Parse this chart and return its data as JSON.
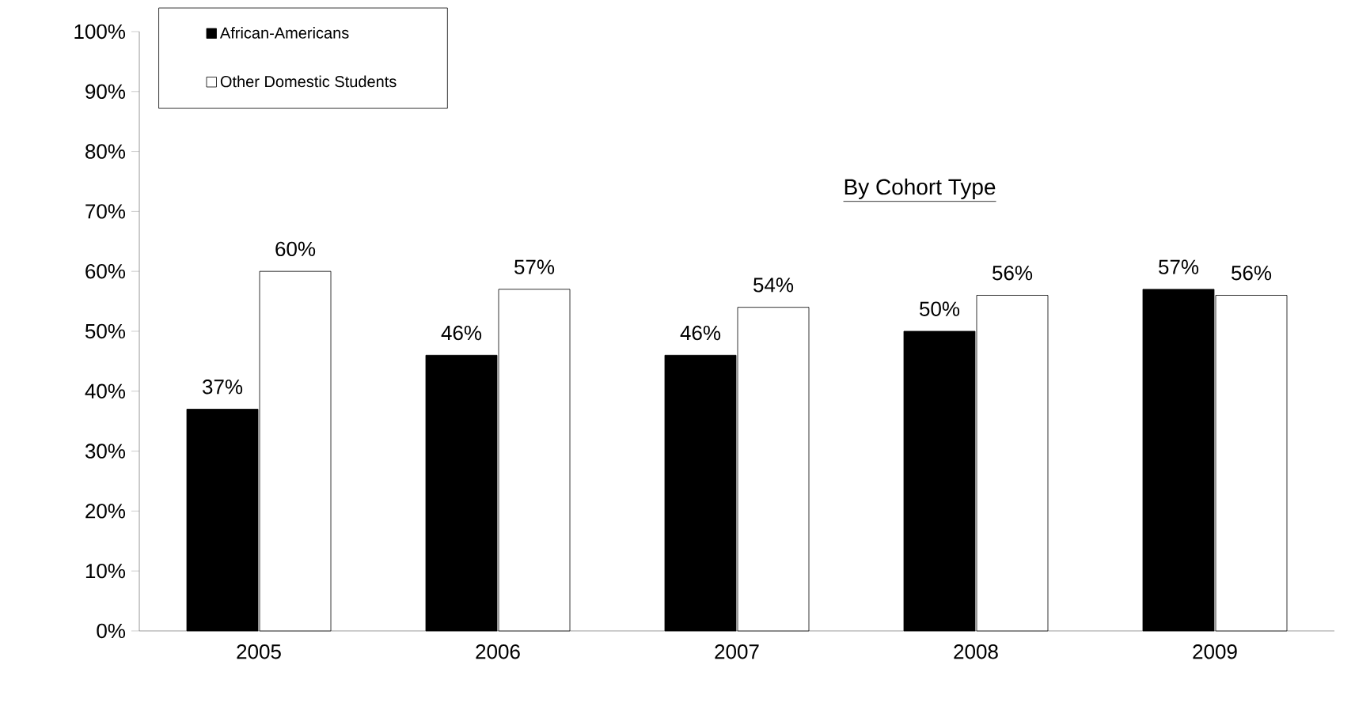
{
  "chart_data": {
    "type": "bar",
    "title": "By Cohort Type",
    "categories": [
      "2005",
      "2006",
      "2007",
      "2008",
      "2009"
    ],
    "series": [
      {
        "name": "African-Americans",
        "color": "#000000",
        "values": [
          37,
          46,
          46,
          50,
          57
        ],
        "value_labels": [
          "37%",
          "46%",
          "46%",
          "50%",
          "57%"
        ]
      },
      {
        "name": "Other Domestic Students",
        "color": "#ffffff",
        "values": [
          60,
          57,
          54,
          56,
          56
        ],
        "value_labels": [
          "60%",
          "57%",
          "54%",
          "56%",
          "56%"
        ]
      }
    ],
    "ylim": [
      0,
      100
    ],
    "yticks": [
      {
        "value": 0,
        "label": "0%"
      },
      {
        "value": 10,
        "label": "10%"
      },
      {
        "value": 20,
        "label": "20%"
      },
      {
        "value": 30,
        "label": "30%"
      },
      {
        "value": 40,
        "label": "40%"
      },
      {
        "value": 50,
        "label": "50%"
      },
      {
        "value": 60,
        "label": "60%"
      },
      {
        "value": 70,
        "label": "70%"
      },
      {
        "value": 80,
        "label": "80%"
      },
      {
        "value": 90,
        "label": "90%"
      },
      {
        "value": 100,
        "label": "100%"
      }
    ],
    "legend": "top left",
    "grid": false
  }
}
